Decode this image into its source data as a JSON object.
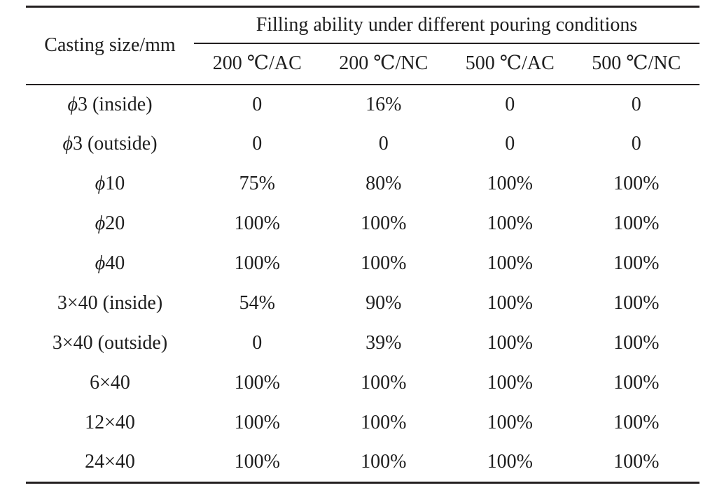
{
  "table": {
    "corner_header": "Casting size/mm",
    "group_header": "Filling ability under different pouring conditions",
    "columns": [
      "200 ℃/AC",
      "200 ℃/NC",
      "500 ℃/AC",
      "500 ℃/NC"
    ],
    "rows": [
      {
        "sym": "ϕ",
        "rest": "3 (inside)",
        "values": [
          "0",
          "16%",
          "0",
          "0"
        ]
      },
      {
        "sym": "ϕ",
        "rest": "3 (outside)",
        "values": [
          "0",
          "0",
          "0",
          "0"
        ]
      },
      {
        "sym": "ϕ",
        "rest": "10",
        "values": [
          "75%",
          "80%",
          "100%",
          "100%"
        ]
      },
      {
        "sym": "ϕ",
        "rest": "20",
        "values": [
          "100%",
          "100%",
          "100%",
          "100%"
        ]
      },
      {
        "sym": "ϕ",
        "rest": "40",
        "values": [
          "100%",
          "100%",
          "100%",
          "100%"
        ]
      },
      {
        "sym": "",
        "rest": "3×40 (inside)",
        "values": [
          "54%",
          "90%",
          "100%",
          "100%"
        ]
      },
      {
        "sym": "",
        "rest": "3×40 (outside)",
        "values": [
          "0",
          "39%",
          "100%",
          "100%"
        ]
      },
      {
        "sym": "",
        "rest": "6×40",
        "values": [
          "100%",
          "100%",
          "100%",
          "100%"
        ]
      },
      {
        "sym": "",
        "rest": "12×40",
        "values": [
          "100%",
          "100%",
          "100%",
          "100%"
        ]
      },
      {
        "sym": "",
        "rest": "24×40",
        "values": [
          "100%",
          "100%",
          "100%",
          "100%"
        ]
      }
    ],
    "colors": {
      "text": "#1e1e1e",
      "rule": "#231f20",
      "background": "#ffffff"
    }
  },
  "chart_data": {
    "type": "table",
    "title": "Filling ability under different pouring conditions",
    "row_header": "Casting size/mm",
    "categories": [
      "ϕ3 (inside)",
      "ϕ3 (outside)",
      "ϕ10",
      "ϕ20",
      "ϕ40",
      "3×40 (inside)",
      "3×40 (outside)",
      "6×40",
      "12×40",
      "24×40"
    ],
    "series": [
      {
        "name": "200 ℃/AC",
        "values": [
          "0",
          "0",
          "75%",
          "100%",
          "100%",
          "54%",
          "0",
          "100%",
          "100%",
          "100%"
        ]
      },
      {
        "name": "200 ℃/NC",
        "values": [
          "16%",
          "0",
          "80%",
          "100%",
          "100%",
          "90%",
          "39%",
          "100%",
          "100%",
          "100%"
        ]
      },
      {
        "name": "500 ℃/AC",
        "values": [
          "0",
          "0",
          "100%",
          "100%",
          "100%",
          "100%",
          "100%",
          "100%",
          "100%",
          "100%"
        ]
      },
      {
        "name": "500 ℃/NC",
        "values": [
          "0",
          "0",
          "100%",
          "100%",
          "100%",
          "100%",
          "100%",
          "100%",
          "100%",
          "100%"
        ]
      }
    ]
  }
}
